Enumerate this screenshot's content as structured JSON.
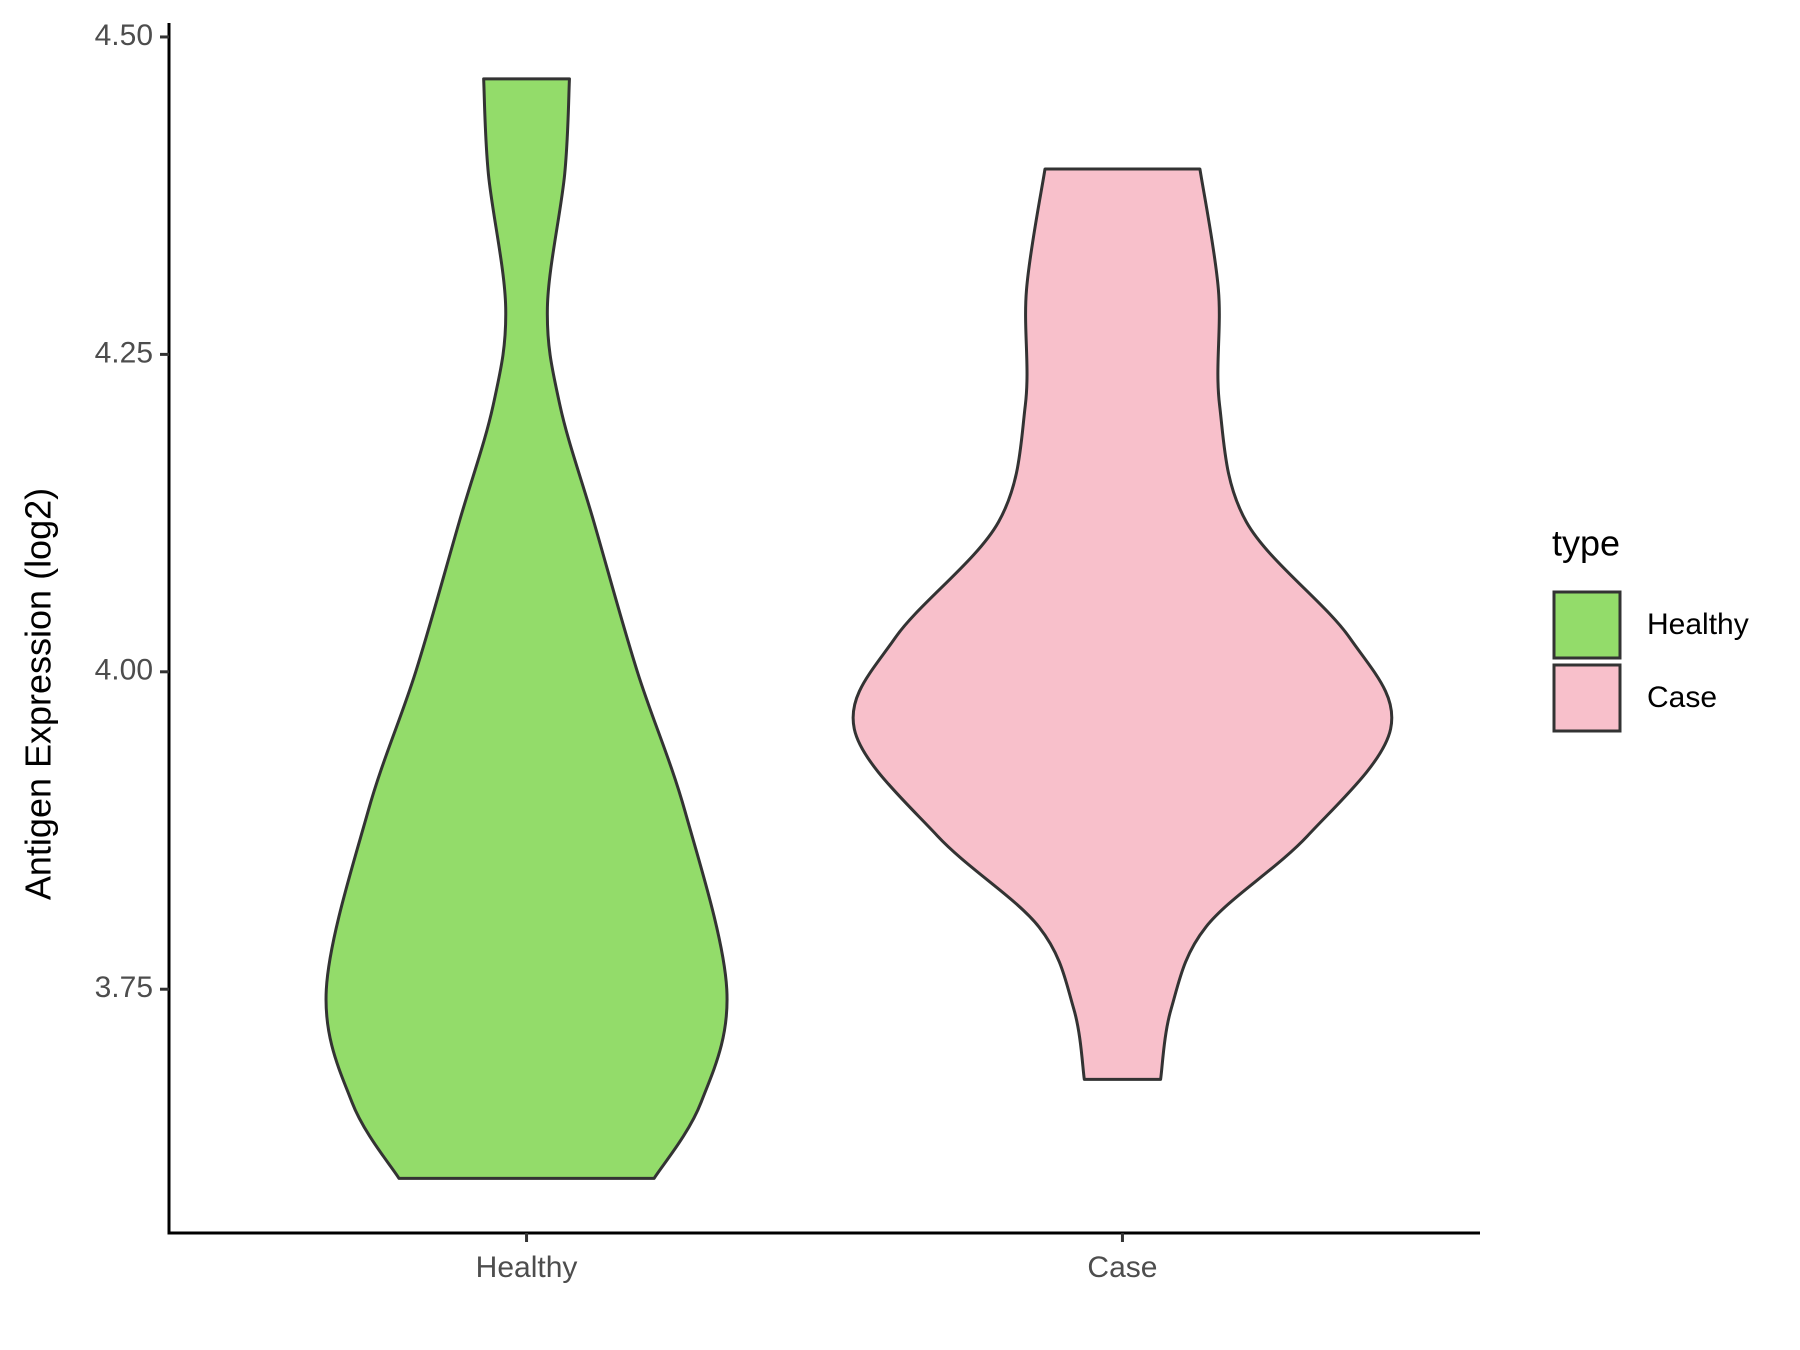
{
  "chart_data": {
    "type": "violin",
    "y_label": "Antigen Expression (log2)",
    "categories": [
      "Healthy",
      "Case"
    ],
    "legend_title": "type",
    "series": [
      {
        "name": "Healthy",
        "color": "#93dc6a",
        "y": [
          4.467,
          4.392,
          4.287,
          4.21,
          4.118,
          4.0,
          3.89,
          3.75,
          3.661,
          3.601
        ],
        "half_width": [
          0.072,
          0.064,
          0.035,
          0.056,
          0.113,
          0.186,
          0.266,
          0.336,
          0.293,
          0.214
        ]
      },
      {
        "name": "Case",
        "color": "#f8c0cb",
        "y": [
          4.396,
          4.301,
          4.21,
          4.118,
          4.027,
          3.955,
          3.871,
          3.799,
          3.735,
          3.679
        ],
        "half_width": [
          0.13,
          0.161,
          0.163,
          0.208,
          0.381,
          0.45,
          0.311,
          0.14,
          0.082,
          0.064
        ]
      }
    ],
    "ylim": [
      3.558,
      4.511
    ],
    "yticks": [
      {
        "value": 3.75,
        "label": "3.75"
      },
      {
        "value": 4.0,
        "label": "4.00"
      },
      {
        "value": 4.25,
        "label": "4.25"
      },
      {
        "value": 4.5,
        "label": "4.50"
      }
    ],
    "grid": false
  }
}
